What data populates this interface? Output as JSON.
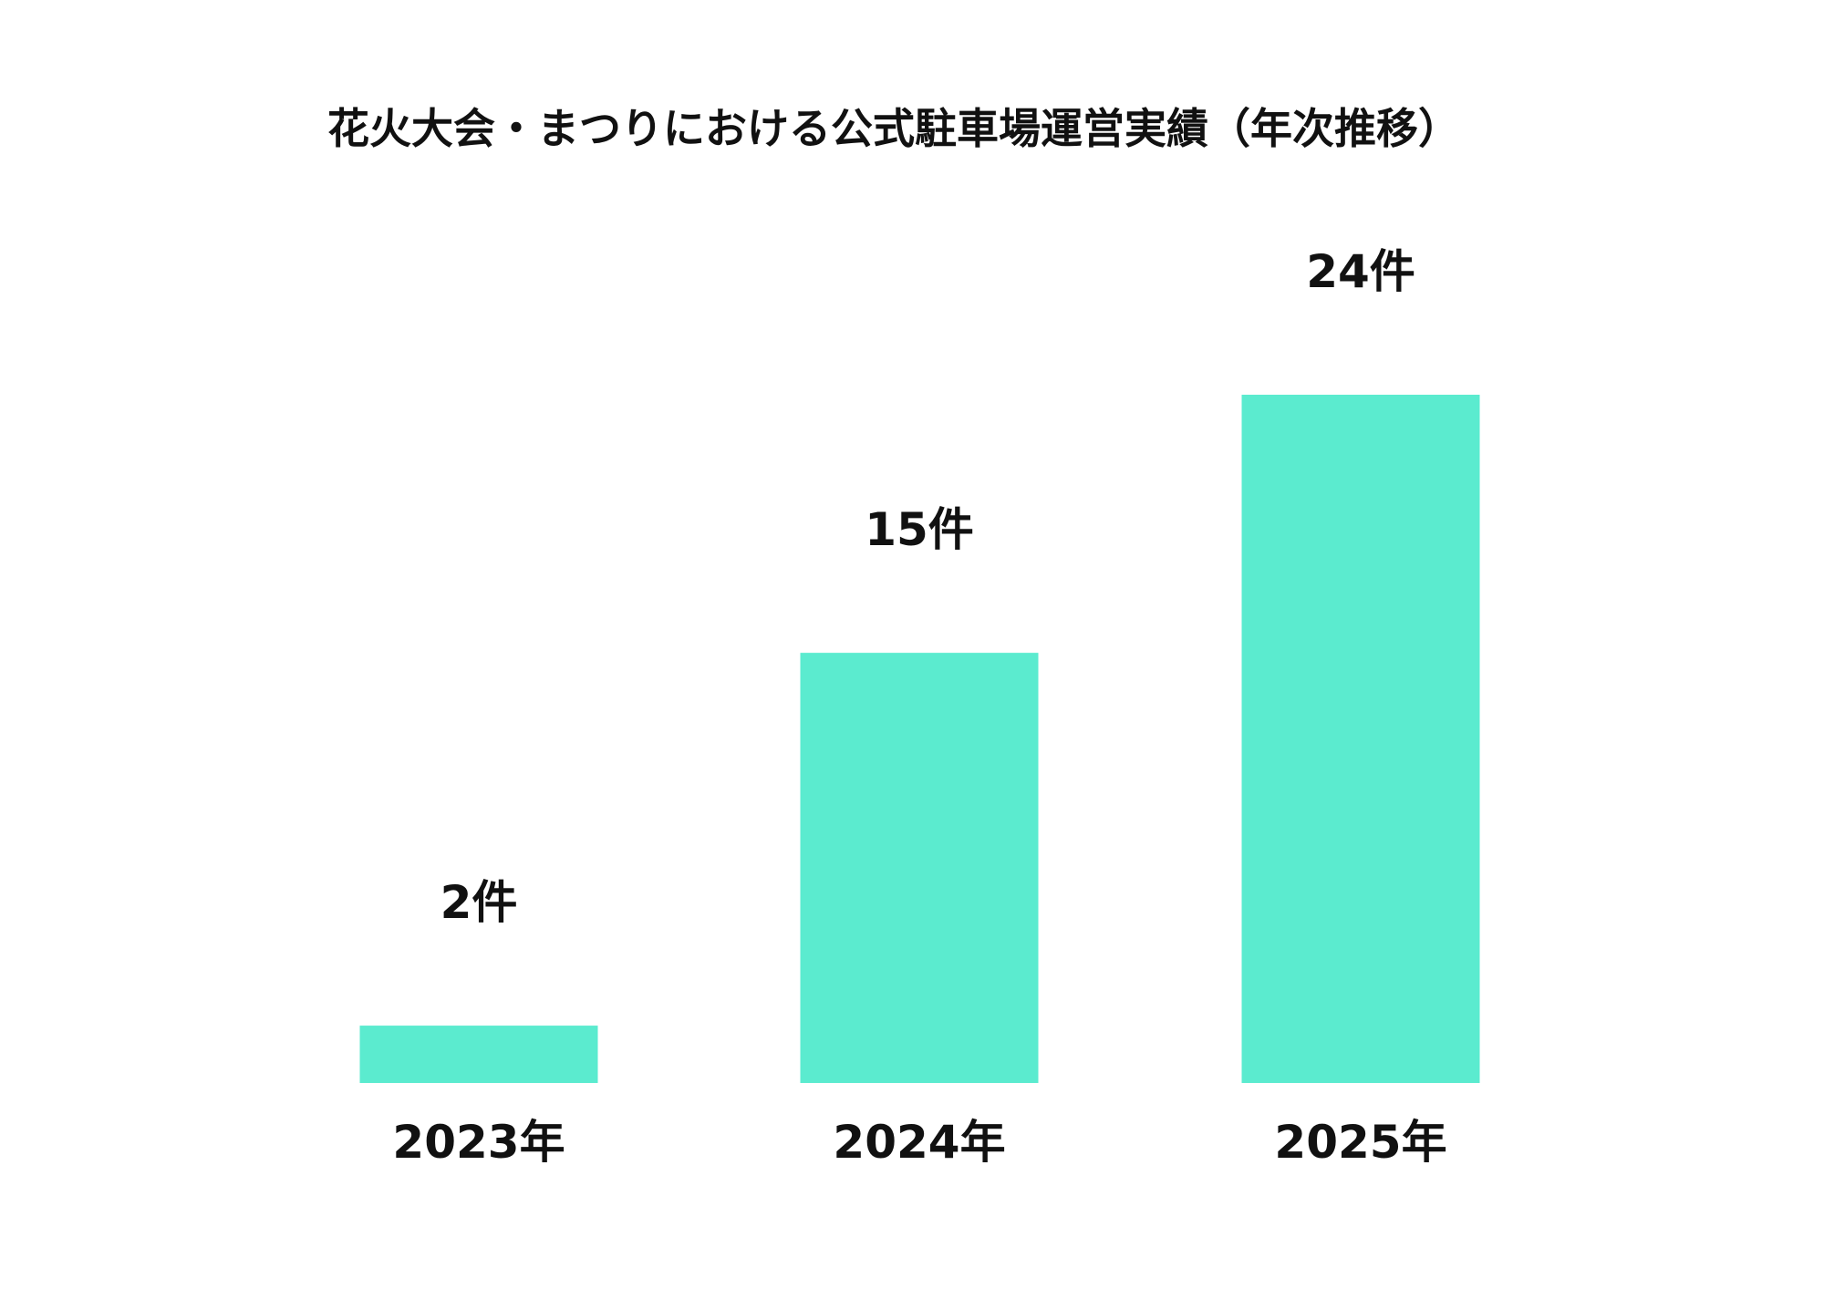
{
  "chart_data": {
    "type": "bar",
    "title": "花火大会・まつりにおける公式駐車場運営実績（年次推移）",
    "categories": [
      "2023年",
      "2024年",
      "2025年"
    ],
    "values": [
      2,
      15,
      24
    ],
    "value_labels": [
      "2件",
      "15件",
      "24件"
    ],
    "xlabel": "",
    "ylabel": "",
    "ylim": [
      0,
      24
    ],
    "grid": false,
    "legend": "none",
    "bar_color": "#5BEBCF",
    "text_color": "#111111"
  }
}
